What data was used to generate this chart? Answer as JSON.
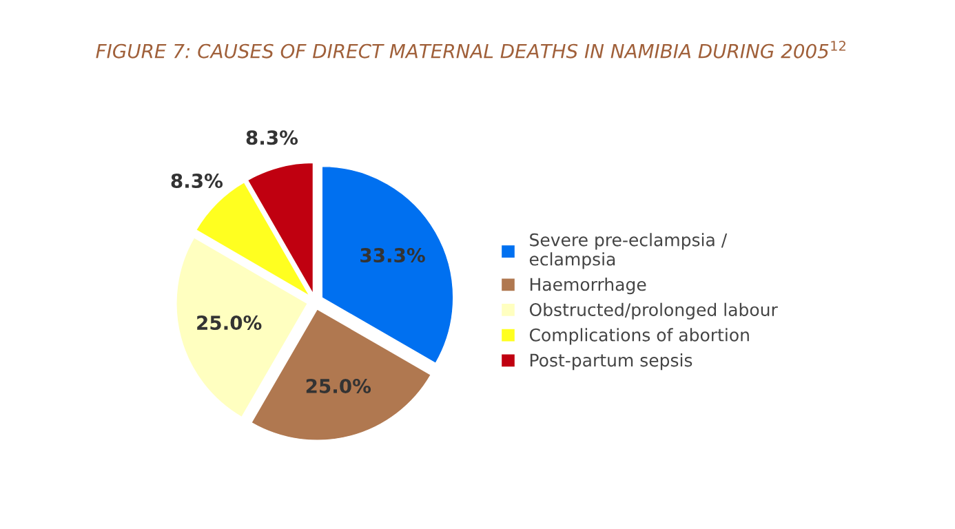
{
  "chart_data": {
    "type": "pie",
    "title": "FIGURE 7: CAUSES OF DIRECT MATERNAL DEATHS IN NAMIBIA DURING 2005$^{12}$",
    "categories": [
      "Severe pre-eclampsia /\neclampsia",
      "Haemorrhage",
      "Obstructed/prolonged labour",
      "Complications of abortion",
      "Post-partum sepsis"
    ],
    "values": [
      33.3,
      25.0,
      25.0,
      8.3,
      8.3
    ],
    "value_labels": [
      "33.3%",
      "25.0%",
      "25.0%",
      "8.3%",
      "8.3%"
    ],
    "colors": [
      "#0070f0",
      "#b07850",
      "#ffffc0",
      "#ffff20",
      "#c00010"
    ],
    "legend": "right"
  }
}
